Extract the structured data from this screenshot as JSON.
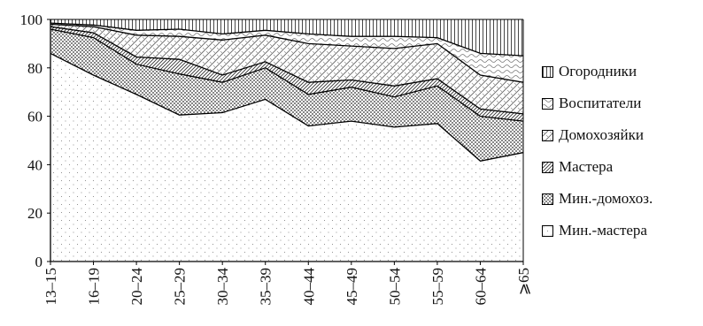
{
  "chart_data": {
    "type": "area",
    "stacked": true,
    "categories": [
      "13–15",
      "16–19",
      "20–24",
      "25–29",
      "30–34",
      "35–39",
      "40–44",
      "45–49",
      "50–54",
      "55–59",
      "60–64",
      "⩾65"
    ],
    "series": [
      {
        "name": "Мин.-мастера",
        "pattern": "sparse-dots",
        "values": [
          86,
          77,
          69,
          60.5,
          61.5,
          67,
          56,
          58,
          55.5,
          57,
          41.5,
          45
        ]
      },
      {
        "name": "Мин.-домохоз.",
        "pattern": "dense-dots",
        "values": [
          10,
          15.5,
          12.5,
          17,
          12.5,
          13,
          13,
          14,
          12.5,
          15.5,
          18.5,
          13
        ]
      },
      {
        "name": "Мастера",
        "pattern": "diag-fine",
        "values": [
          1,
          2,
          3,
          6,
          3,
          2.5,
          5,
          3,
          4.5,
          3,
          3,
          3
        ]
      },
      {
        "name": "Домохозяйки",
        "pattern": "diag-cross",
        "values": [
          1,
          2.5,
          9,
          9.5,
          14.5,
          11,
          16,
          14,
          15.5,
          14.5,
          14,
          13
        ]
      },
      {
        "name": "Воспитатели",
        "pattern": "wavy",
        "values": [
          0.5,
          0.7,
          2,
          3,
          2.5,
          2,
          4,
          4,
          5,
          2.5,
          9,
          11
        ]
      },
      {
        "name": "Огородники",
        "pattern": "vertical",
        "values": [
          1.5,
          2.3,
          4.5,
          4,
          6,
          4.5,
          6,
          7,
          7,
          7.5,
          14,
          15
        ]
      }
    ],
    "yticks": [
      0,
      20,
      40,
      60,
      80,
      100
    ],
    "ylim": [
      0,
      100
    ],
    "legend_order": [
      "Огородники",
      "Воспитатели",
      "Домохозяйки",
      "Мастера",
      "Мин.-домохоз.",
      "Мин.-мастера"
    ],
    "legend_position": "right",
    "title": "",
    "xlabel": "",
    "ylabel": "",
    "colors": {
      "stroke": "#000000",
      "pattern": "#555555",
      "background": "#ffffff"
    }
  }
}
